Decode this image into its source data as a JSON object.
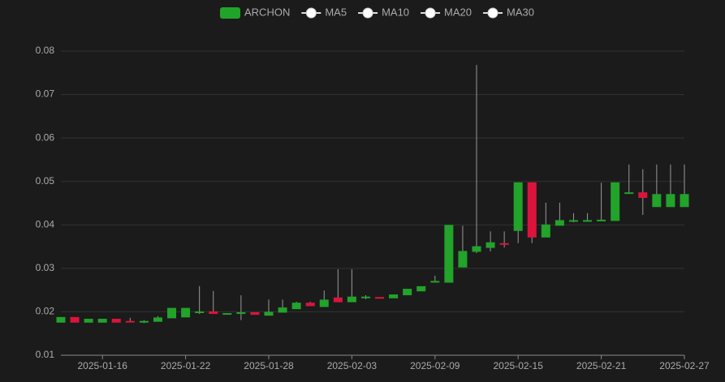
{
  "chart_data": {
    "type": "candlestick",
    "categories": [
      null,
      null,
      null,
      "2025-01-16",
      null,
      null,
      null,
      null,
      null,
      "2025-01-22",
      null,
      null,
      null,
      null,
      null,
      "2025-01-28",
      null,
      null,
      null,
      null,
      null,
      "2025-02-03",
      null,
      null,
      null,
      null,
      null,
      "2025-02-09",
      null,
      null,
      null,
      null,
      null,
      "2025-02-15",
      null,
      null,
      null,
      null,
      null,
      "2025-02-21",
      null,
      null,
      null,
      null,
      null,
      "2025-02-27"
    ],
    "up_color": "#22a32a",
    "down_color": "#dc143c",
    "series": [
      {
        "name": "ARCHON",
        "color": "#22a32a",
        "open": [
          0.0176,
          0.0187,
          0.0176,
          0.0176,
          0.0183,
          0.0178,
          0.0176,
          0.0178,
          0.0186,
          0.0188,
          0.0198,
          0.02,
          0.0195,
          0.0196,
          0.0198,
          0.0192,
          0.0199,
          0.0207,
          0.022,
          0.0212,
          0.0232,
          0.0223,
          0.0233,
          0.0233,
          0.0232,
          0.0239,
          0.0248,
          0.0269,
          0.0268,
          0.0303,
          0.0339,
          0.0348,
          0.0357,
          0.0387,
          0.0497,
          0.0372,
          0.0399,
          0.041,
          0.041,
          0.041,
          0.041,
          0.0473,
          0.0474,
          0.0442,
          0.0442,
          0.0442
        ],
        "close": [
          0.0187,
          0.0176,
          0.0183,
          0.0183,
          0.0176,
          0.0177,
          0.0178,
          0.0186,
          0.0208,
          0.0208,
          0.02,
          0.0196,
          0.0196,
          0.0198,
          0.0194,
          0.0199,
          0.0209,
          0.022,
          0.0214,
          0.0227,
          0.0223,
          0.0234,
          0.0234,
          0.0232,
          0.0239,
          0.0252,
          0.0258,
          0.027,
          0.0399,
          0.0339,
          0.035,
          0.0359,
          0.0355,
          0.0497,
          0.0372,
          0.04,
          0.041,
          0.041,
          0.041,
          0.0411,
          0.0497,
          0.0474,
          0.0463,
          0.047,
          0.047,
          0.047
        ],
        "low": [
          0.0176,
          0.0176,
          0.0176,
          0.0176,
          0.0176,
          0.0176,
          0.0174,
          0.0178,
          0.0186,
          0.0188,
          0.0195,
          0.0196,
          0.0195,
          0.0181,
          0.0194,
          0.0192,
          0.0199,
          0.0207,
          0.0214,
          0.0212,
          0.0223,
          0.0223,
          0.0229,
          0.0232,
          0.0232,
          0.0239,
          0.0248,
          0.0268,
          0.0268,
          0.0303,
          0.0335,
          0.0339,
          0.0348,
          0.0358,
          0.0358,
          0.0372,
          0.0399,
          0.0406,
          0.041,
          0.041,
          0.041,
          0.0473,
          0.0423,
          0.0442,
          0.0442,
          0.0442
        ],
        "high": [
          0.0187,
          0.0187,
          0.0183,
          0.0183,
          0.0183,
          0.0186,
          0.0181,
          0.019,
          0.0208,
          0.0208,
          0.0259,
          0.0248,
          0.0197,
          0.0238,
          0.0198,
          0.0228,
          0.0228,
          0.0223,
          0.0223,
          0.0249,
          0.0298,
          0.0298,
          0.0238,
          0.0233,
          0.0239,
          0.0252,
          0.0258,
          0.0283,
          0.04,
          0.0398,
          0.0768,
          0.0385,
          0.0385,
          0.0497,
          0.0497,
          0.0451,
          0.0451,
          0.0427,
          0.0427,
          0.0497,
          0.0497,
          0.0539,
          0.0528,
          0.0539,
          0.0539,
          0.0539
        ]
      },
      {
        "name": "MA5"
      },
      {
        "name": "MA10"
      },
      {
        "name": "MA20"
      },
      {
        "name": "MA30"
      }
    ],
    "ylim": [
      0.01,
      0.08
    ],
    "yticks": [
      0.01,
      0.02,
      0.03,
      0.04,
      0.05,
      0.06,
      0.07,
      0.08
    ],
    "grid": true
  }
}
